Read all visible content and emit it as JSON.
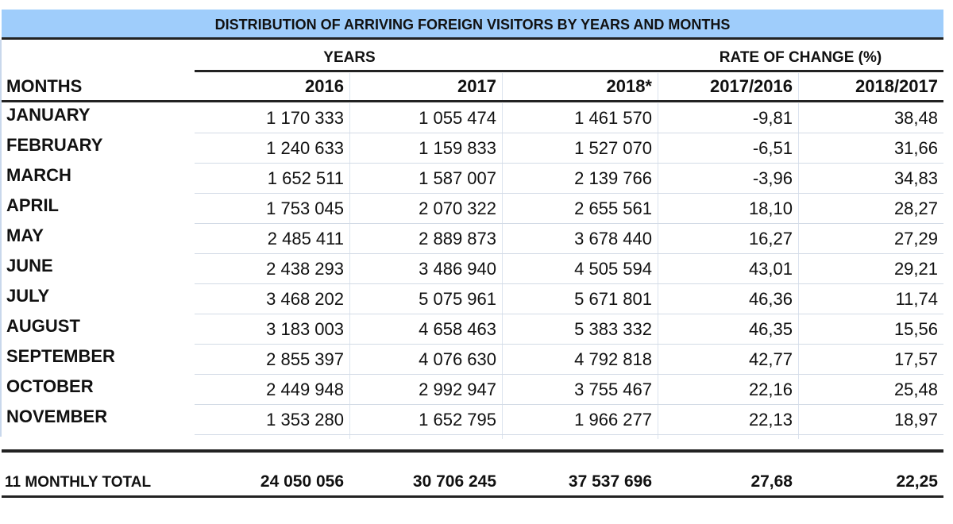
{
  "title": "DISTRIBUTION OF ARRIVING FOREIGN VISITORS BY YEARS AND MONTHS",
  "group_headers": {
    "years": "YEARS",
    "rate": "RATE OF CHANGE (%)"
  },
  "columns": [
    "MONTHS",
    "2016",
    "2017",
    "2018*",
    "2017/2016",
    "2018/2017"
  ],
  "rows": [
    [
      "JANUARY",
      "1 170 333",
      "1 055 474",
      "1 461 570",
      "-9,81",
      "38,48"
    ],
    [
      "FEBRUARY",
      "1 240 633",
      "1 159 833",
      "1 527 070",
      "-6,51",
      "31,66"
    ],
    [
      "MARCH",
      "1 652 511",
      "1 587 007",
      "2 139 766",
      "-3,96",
      "34,83"
    ],
    [
      "APRIL",
      "1 753 045",
      "2 070 322",
      "2 655 561",
      "18,10",
      "28,27"
    ],
    [
      "MAY",
      "2 485 411",
      "2 889 873",
      "3 678 440",
      "16,27",
      "27,29"
    ],
    [
      "JUNE",
      "2 438 293",
      "3 486 940",
      "4 505 594",
      "43,01",
      "29,21"
    ],
    [
      "JULY",
      "3 468 202",
      "5 075 961",
      "5 671 801",
      "46,36",
      "11,74"
    ],
    [
      "AUGUST",
      "3 183 003",
      "4 658 463",
      "5 383 332",
      "46,35",
      "15,56"
    ],
    [
      "SEPTEMBER",
      "2 855 397",
      "4 076 630",
      "4 792 818",
      "42,77",
      "17,57"
    ],
    [
      "OCTOBER",
      "2 449 948",
      "2 992 947",
      "3 755 467",
      "22,16",
      "25,48"
    ],
    [
      "NOVEMBER",
      "1 353 280",
      "1 652 795",
      "1 966 277",
      "22,13",
      "18,97"
    ]
  ],
  "total": [
    "11 MONTHLY TOTAL",
    "24 050 056",
    "30 706 245",
    "37 537 696",
    "27,68",
    "22,25"
  ]
}
